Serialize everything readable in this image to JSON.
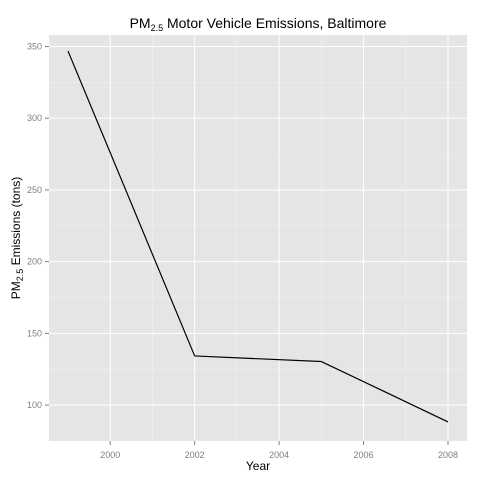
{
  "chart_data": {
    "type": "line",
    "title": {
      "prefix": "PM",
      "subscript": "2.5",
      "suffix": " Motor Vehicle Emissions, Baltimore"
    },
    "xlabel": "Year",
    "ylabel": {
      "prefix": "PM",
      "subscript": "2.5",
      "suffix": "  Emissions (tons)"
    },
    "x": [
      1999,
      2002,
      2005,
      2008
    ],
    "series": [
      {
        "values": [
          346.8,
          134.3,
          130.4,
          88.3
        ]
      }
    ],
    "xlim": [
      1998.55,
      2008.45
    ],
    "ylim": [
      75,
      358
    ],
    "x_ticks": [
      2000,
      2002,
      2004,
      2006,
      2008
    ],
    "y_ticks": [
      100,
      150,
      200,
      250,
      300,
      350
    ],
    "x_tick_labels": [
      "2000",
      "2002",
      "2004",
      "2006",
      "2008"
    ],
    "y_tick_labels": [
      "100",
      "150",
      "200",
      "250",
      "300",
      "350"
    ],
    "grid": true,
    "colors": {
      "panel": "#e5e5e5",
      "grid_major": "#ffffff",
      "grid_minor": "#f2f2f2",
      "line": "#000000",
      "tick_text": "#7f7f7f"
    }
  }
}
